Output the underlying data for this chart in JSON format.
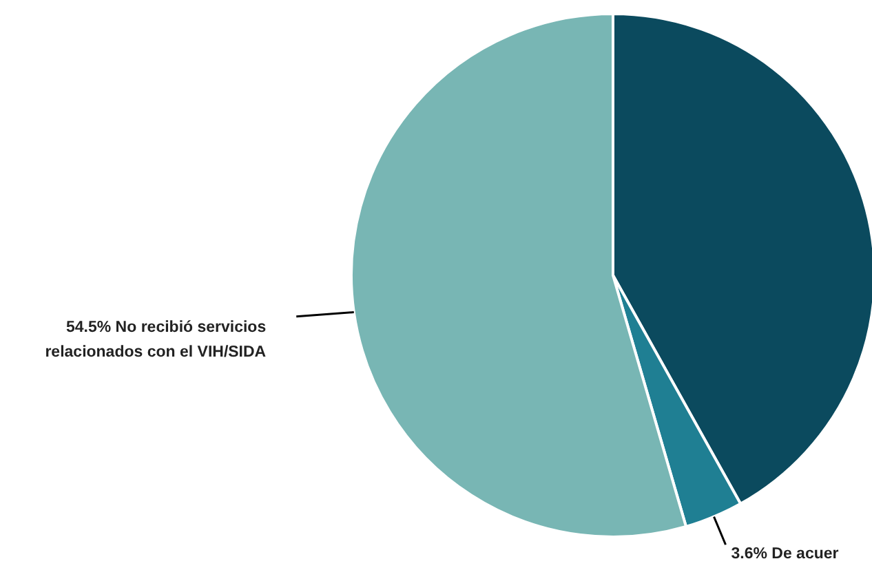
{
  "chart_data": {
    "type": "pie",
    "categories": [
      null,
      "De acuer",
      "No recibió servicios relacionados con el VIH/SIDA"
    ],
    "values": [
      41.9,
      3.6,
      54.5
    ],
    "colors": [
      "#0b4a5e",
      "#1f7f93",
      "#78b6b4"
    ],
    "value_labels": [
      null,
      "3.6%",
      "54.5%"
    ]
  }
}
